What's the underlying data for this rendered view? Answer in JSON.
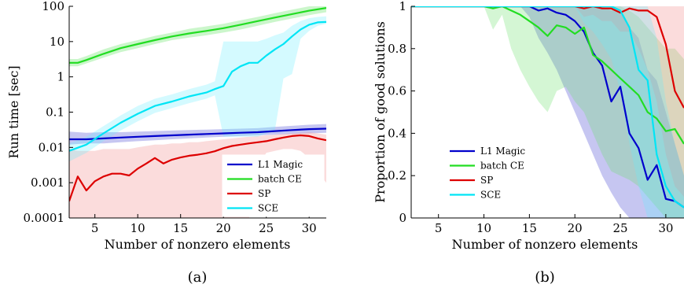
{
  "chart_data": [
    {
      "type": "line",
      "panel_label": "(a)",
      "xlabel": "Number of nonzero elements",
      "ylabel": "Run time [sec]",
      "xlim": [
        2,
        32
      ],
      "ylim": [
        0.0001,
        100
      ],
      "yscale": "log",
      "x_ticks": [
        5,
        10,
        15,
        20,
        25,
        30
      ],
      "y_ticks": [
        0.0001,
        0.001,
        0.01,
        0.1,
        1,
        10,
        100
      ],
      "y_tick_labels": [
        "0.0001",
        "0.001",
        "0.01",
        "0.1",
        "1",
        "10",
        "100"
      ],
      "legend_position": "bottom-right",
      "shaded_bands": true,
      "series": [
        {
          "name": "L1 Magic",
          "color": "#0000cc",
          "band_color": "#3333cc",
          "x": [
            2,
            4,
            6,
            8,
            10,
            12,
            14,
            16,
            18,
            20,
            22,
            24,
            26,
            28,
            30,
            32
          ],
          "values": [
            0.017,
            0.017,
            0.018,
            0.019,
            0.02,
            0.021,
            0.022,
            0.023,
            0.024,
            0.025,
            0.026,
            0.027,
            0.029,
            0.031,
            0.033,
            0.034
          ],
          "lower": [
            0.012,
            0.013,
            0.013,
            0.014,
            0.015,
            0.016,
            0.017,
            0.018,
            0.019,
            0.02,
            0.021,
            0.022,
            0.023,
            0.024,
            0.025,
            0.026
          ],
          "upper": [
            0.028,
            0.026,
            0.027,
            0.027,
            0.028,
            0.029,
            0.03,
            0.031,
            0.032,
            0.033,
            0.034,
            0.035,
            0.038,
            0.041,
            0.044,
            0.046
          ]
        },
        {
          "name": "batch CE",
          "color": "#22dd22",
          "band_color": "#44dd44",
          "x": [
            2,
            3,
            4,
            6,
            8,
            10,
            12,
            14,
            16,
            18,
            20,
            22,
            24,
            26,
            28,
            30,
            32
          ],
          "values": [
            2.5,
            2.5,
            3.0,
            4.5,
            6.5,
            8.5,
            11,
            14,
            17,
            20,
            24,
            30,
            38,
            48,
            60,
            75,
            90
          ],
          "lower": [
            2.0,
            2.0,
            2.4,
            3.5,
            5.0,
            6.5,
            8.5,
            11,
            13,
            15,
            18,
            22,
            28,
            36,
            45,
            56,
            68
          ],
          "upper": [
            3.2,
            3.2,
            3.9,
            6.0,
            8.5,
            11,
            14.5,
            18,
            23,
            27,
            32,
            40,
            50,
            64,
            80,
            100,
            100
          ]
        },
        {
          "name": "SP",
          "color": "#dd0000",
          "band_color": "#f08080",
          "x": [
            2,
            3,
            4,
            5,
            6,
            7,
            8,
            9,
            10,
            11,
            12,
            13,
            14,
            15,
            16,
            17,
            18,
            19,
            20,
            21,
            22,
            23,
            24,
            25,
            26,
            27,
            28,
            29,
            30,
            31,
            32
          ],
          "values": [
            0.0003,
            0.0015,
            0.0006,
            0.0011,
            0.0015,
            0.0018,
            0.0018,
            0.0016,
            0.0025,
            0.0035,
            0.005,
            0.0035,
            0.0045,
            0.0052,
            0.0058,
            0.0062,
            0.0068,
            0.0078,
            0.0095,
            0.011,
            0.012,
            0.013,
            0.014,
            0.015,
            0.017,
            0.019,
            0.021,
            0.022,
            0.021,
            0.018,
            0.016
          ],
          "lower": [
            0.0001,
            0.0001,
            0.0001,
            0.0001,
            0.0001,
            0.0001,
            0.0001,
            0.0001,
            0.0001,
            0.0001,
            0.0001,
            0.0001,
            0.0001,
            0.0001,
            0.0001,
            0.0001,
            0.0001,
            0.0001,
            0.0001,
            0.0001,
            0.0001,
            0.0001,
            0.003,
            0.007,
            0.008,
            0.009,
            0.009,
            0.008,
            0.005,
            0.002,
            0.001
          ],
          "upper": [
            0.009,
            0.008,
            0.008,
            0.008,
            0.009,
            0.009,
            0.009,
            0.009,
            0.01,
            0.011,
            0.012,
            0.012,
            0.013,
            0.013,
            0.014,
            0.014,
            0.015,
            0.016,
            0.017,
            0.018,
            0.019,
            0.02,
            0.021,
            0.022,
            0.023,
            0.024,
            0.025,
            0.026,
            0.027,
            0.025,
            0.023
          ]
        },
        {
          "name": "SCE",
          "color": "#00e5f5",
          "band_color": "#66eeff",
          "x": [
            2,
            4,
            6,
            8,
            10,
            12,
            14,
            16,
            18,
            19,
            20,
            21,
            22,
            23,
            24,
            25,
            26,
            27,
            28,
            29,
            30,
            31,
            32
          ],
          "values": [
            0.008,
            0.012,
            0.025,
            0.05,
            0.09,
            0.15,
            0.2,
            0.28,
            0.36,
            0.45,
            0.55,
            1.4,
            2.0,
            2.5,
            2.5,
            4.0,
            6.0,
            8.5,
            14,
            22,
            30,
            35,
            36
          ],
          "lower": [
            0.004,
            0.007,
            0.015,
            0.03,
            0.055,
            0.095,
            0.13,
            0.18,
            0.24,
            0.3,
            0.02,
            0.02,
            0.02,
            0.02,
            0.02,
            0.025,
            0.03,
            0.9,
            1.2,
            12,
            20,
            28,
            32
          ],
          "upper": [
            0.013,
            0.02,
            0.04,
            0.08,
            0.15,
            0.24,
            0.32,
            0.45,
            0.6,
            0.75,
            10,
            10,
            10,
            10,
            10,
            12,
            15,
            18,
            28,
            38,
            46,
            50,
            52
          ]
        }
      ]
    },
    {
      "type": "line",
      "panel_label": "(b)",
      "xlabel": "Number of nonzero elements",
      "ylabel": "Proportion of good solutions",
      "xlim": [
        2,
        32
      ],
      "ylim": [
        0,
        1
      ],
      "x_ticks": [
        5,
        10,
        15,
        20,
        25,
        30
      ],
      "y_ticks": [
        0,
        0.2,
        0.4,
        0.6,
        0.8,
        1
      ],
      "y_tick_labels": [
        "0",
        "0.2",
        "0.4",
        "0.6",
        "0.8",
        "1"
      ],
      "legend_position": "bottom-left",
      "shaded_bands": true,
      "series": [
        {
          "name": "L1 Magic",
          "color": "#0000cc",
          "band_color": "#3333cc",
          "x": [
            2,
            14,
            15,
            16,
            17,
            18,
            19,
            20,
            21,
            22,
            23,
            24,
            25,
            26,
            27,
            28,
            29,
            30,
            31,
            32
          ],
          "values": [
            1,
            1,
            1,
            0.98,
            0.99,
            0.97,
            0.96,
            0.93,
            0.88,
            0.78,
            0.72,
            0.55,
            0.62,
            0.4,
            0.33,
            0.18,
            0.25,
            0.09,
            0.08,
            0.05
          ],
          "lower": [
            1,
            1,
            0.95,
            0.85,
            0.78,
            0.7,
            0.6,
            0.5,
            0.4,
            0.3,
            0.2,
            0.12,
            0.05,
            0.0,
            0.0,
            0.0,
            0.0,
            0.0,
            0.0,
            0.0
          ],
          "upper": [
            1,
            1,
            1,
            1,
            1,
            1,
            1,
            1,
            1,
            1,
            1,
            0.98,
            0.98,
            0.9,
            0.85,
            0.7,
            0.65,
            0.5,
            0.35,
            0.2
          ]
        },
        {
          "name": "batch CE",
          "color": "#22dd22",
          "band_color": "#66dd66",
          "x": [
            2,
            10,
            11,
            12,
            13,
            14,
            15,
            16,
            17,
            18,
            19,
            20,
            21,
            22,
            23,
            24,
            25,
            26,
            27,
            28,
            29,
            30,
            31,
            32
          ],
          "values": [
            1,
            1,
            0.99,
            1,
            0.98,
            0.96,
            0.93,
            0.9,
            0.86,
            0.91,
            0.9,
            0.87,
            0.9,
            0.77,
            0.74,
            0.7,
            0.66,
            0.62,
            0.58,
            0.5,
            0.47,
            0.41,
            0.42,
            0.35
          ],
          "lower": [
            1,
            1,
            0.89,
            0.96,
            0.8,
            0.7,
            0.62,
            0.55,
            0.5,
            0.6,
            0.62,
            0.55,
            0.5,
            0.4,
            0.3,
            0.22,
            0.2,
            0.18,
            0.15,
            0.1,
            0.05,
            0.0,
            0.0,
            0.0
          ],
          "upper": [
            1,
            1,
            1,
            1,
            1,
            1,
            1,
            1,
            1,
            1,
            1,
            1,
            1,
            1,
            1,
            1,
            1,
            0.98,
            0.95,
            0.9,
            0.85,
            0.8,
            0.8,
            0.75
          ]
        },
        {
          "name": "SP",
          "color": "#dd0000",
          "band_color": "#f08080",
          "x": [
            2,
            20,
            21,
            22,
            23,
            24,
            25,
            26,
            27,
            28,
            29,
            30,
            31,
            32
          ],
          "values": [
            1,
            1,
            0.99,
            1,
            0.99,
            0.99,
            0.97,
            0.99,
            0.98,
            0.98,
            0.95,
            0.82,
            0.6,
            0.52
          ],
          "lower": [
            1,
            1,
            0.95,
            0.96,
            0.93,
            0.93,
            0.88,
            0.88,
            0.8,
            0.7,
            0.55,
            0.3,
            0.15,
            0.1
          ],
          "upper": [
            1,
            1,
            1,
            1,
            1,
            1,
            1,
            1,
            1,
            1,
            1,
            1,
            1,
            1
          ]
        },
        {
          "name": "SCE",
          "color": "#00e5f5",
          "band_color": "#66eeff",
          "x": [
            2,
            20,
            21,
            22,
            23,
            24,
            25,
            26,
            27,
            28,
            29,
            30,
            31,
            32
          ],
          "values": [
            1,
            1,
            1,
            1,
            1,
            1,
            0.98,
            0.9,
            0.7,
            0.65,
            0.3,
            0.15,
            0.08,
            0.05
          ],
          "lower": [
            1,
            1,
            0.92,
            0.88,
            0.82,
            0.75,
            0.6,
            0.35,
            0.15,
            0.0,
            0.0,
            0.0,
            0.0,
            0.0
          ],
          "upper": [
            1,
            1,
            1,
            1,
            1,
            1,
            1,
            1,
            1,
            1,
            0.85,
            0.55,
            0.35,
            0.2
          ]
        }
      ]
    }
  ]
}
